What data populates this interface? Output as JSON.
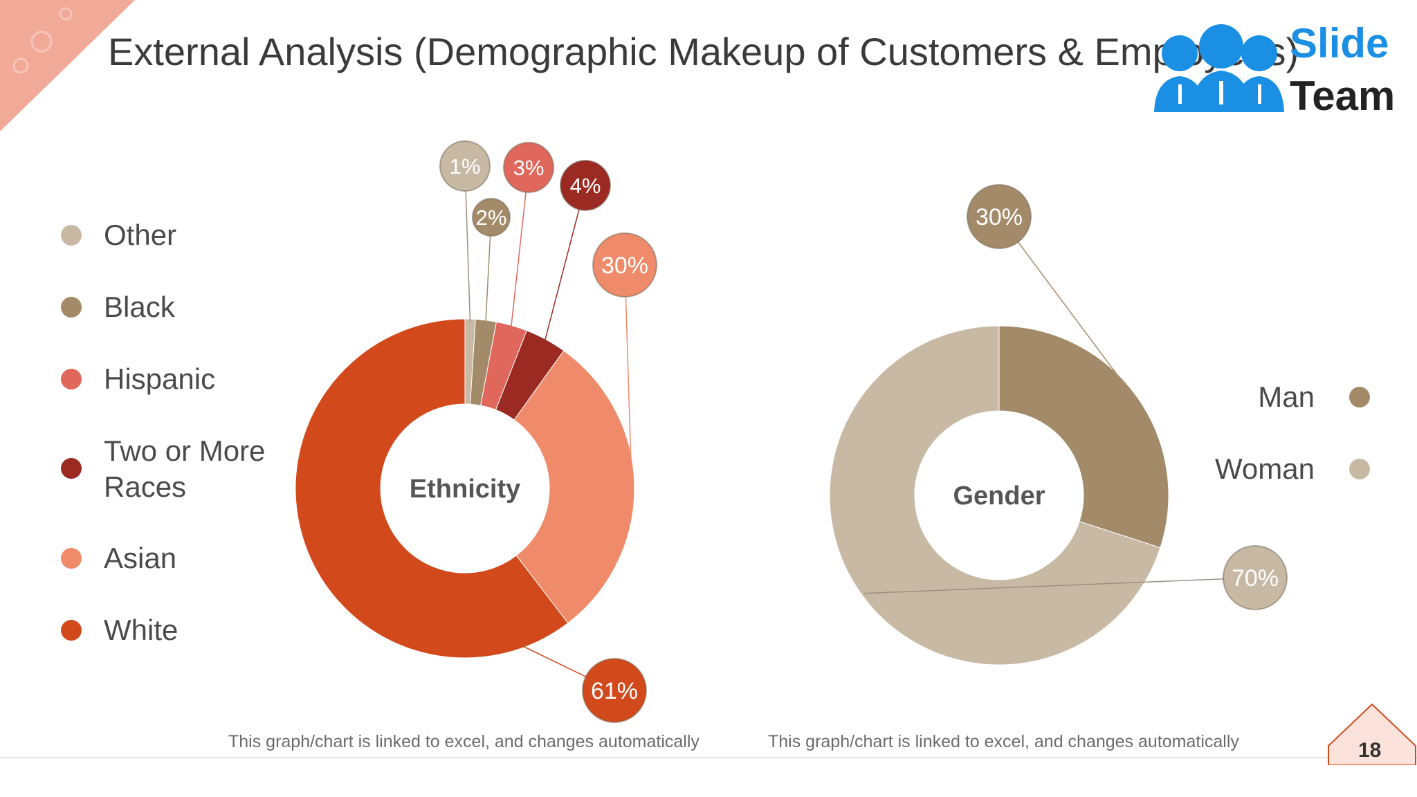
{
  "slide": {
    "title": "External Analysis (Demographic Makeup of Customers & Employees)",
    "page_number": "18"
  },
  "logo": {
    "line1": "Slide",
    "line2": "Team",
    "accent_color": "#1a8fe3"
  },
  "notes": {
    "left": "This graph/chart is linked to excel, and changes automatically",
    "right": "This graph/chart is linked to excel, and changes automatically"
  },
  "chart_data": [
    {
      "type": "pie",
      "title": "Ethnicity",
      "series": [
        {
          "name": "Other",
          "value": 1,
          "label": "1%",
          "color": "#c8b9a5"
        },
        {
          "name": "Black",
          "value": 2,
          "label": "2%",
          "color": "#a38b69"
        },
        {
          "name": "Hispanic",
          "value": 3,
          "label": "3%",
          "color": "#e0675c"
        },
        {
          "name": "Two or More Races",
          "value": 4,
          "label": "4%",
          "color": "#9b2a22"
        },
        {
          "name": "Asian",
          "value": 30,
          "label": "30%",
          "color": "#ef8b6a"
        },
        {
          "name": "White",
          "value": 61,
          "label": "61%",
          "color": "#d24a1c"
        }
      ],
      "legend": "left"
    },
    {
      "type": "pie",
      "title": "Gender",
      "series": [
        {
          "name": "Man",
          "value": 30,
          "label": "30%",
          "color": "#a38b69"
        },
        {
          "name": "Woman",
          "value": 70,
          "label": "70%",
          "color": "#c8b9a5"
        }
      ],
      "legend": "right"
    }
  ]
}
